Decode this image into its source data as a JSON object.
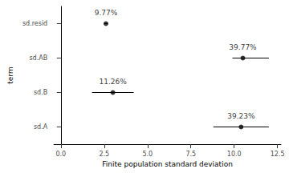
{
  "chart_data": {
    "type": "pointrange",
    "orientation": "horizontal",
    "x_label": "Finite population standard deviation",
    "y_label": "term",
    "categories": [
      "sd.A",
      "sd.B",
      "sd.AB",
      "sd.resid"
    ],
    "values": [
      10.4,
      3.0,
      10.5,
      2.6
    ],
    "lower": [
      8.8,
      1.8,
      9.9,
      2.5
    ],
    "upper": [
      12.0,
      4.2,
      12.0,
      2.7
    ],
    "annotations": [
      "39.23%",
      "11.26%",
      "39.77%",
      "9.77%"
    ],
    "vline": 0,
    "color": "#000000",
    "xlim": [
      -0.4,
      12.7
    ],
    "xticks": [
      {
        "value": 0,
        "label": "0.0"
      },
      {
        "value": 2.5,
        "label": "2.5"
      },
      {
        "value": 5,
        "label": "5.0"
      },
      {
        "value": 7.5,
        "label": "7.5"
      },
      {
        "value": 10,
        "label": "10.0"
      },
      {
        "value": 12.5,
        "label": "12.5"
      }
    ],
    "grid": false
  }
}
